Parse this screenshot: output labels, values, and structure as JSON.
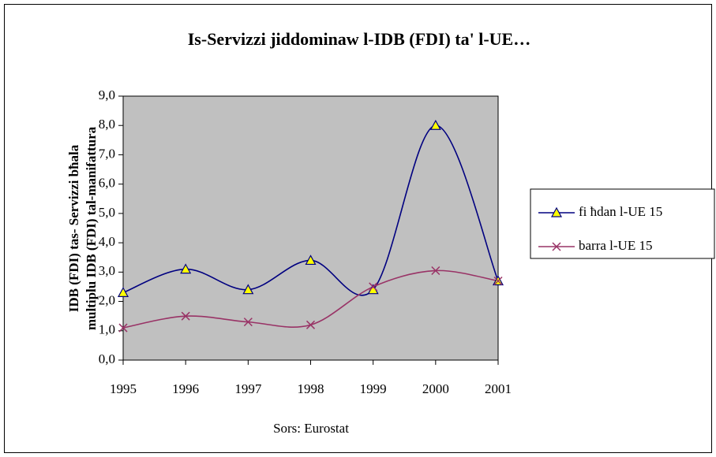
{
  "chart_data": {
    "type": "line",
    "title": "Is-Servizzi jiddominaw l-IDB (FDI) ta' l-UE…",
    "ylabel": [
      "IDB (FDI) tas- Servizzi  bħala",
      "multiplu IDB (FDI) tal-manifattura"
    ],
    "xlabel": "Sors: Eurostat",
    "categories": [
      "1995",
      "1996",
      "1997",
      "1998",
      "1999",
      "2000",
      "2001"
    ],
    "series": [
      {
        "name": "fi ħdan l-UE 15",
        "color": "#000080",
        "marker": "triangle",
        "values": [
          2.3,
          3.1,
          2.4,
          3.4,
          2.4,
          8.0,
          2.7
        ]
      },
      {
        "name": "barra l-UE 15",
        "color": "#993366",
        "marker": "x",
        "values": [
          1.1,
          1.5,
          1.3,
          1.2,
          2.5,
          3.05,
          2.7
        ]
      }
    ],
    "ylim": [
      0,
      9
    ],
    "yticks": [
      {
        "value": 0,
        "label": "0,0"
      },
      {
        "value": 1,
        "label": "1,0"
      },
      {
        "value": 2,
        "label": "2,0"
      },
      {
        "value": 3,
        "label": "3,0"
      },
      {
        "value": 4,
        "label": "4,0"
      },
      {
        "value": 5,
        "label": "5,0"
      },
      {
        "value": 6,
        "label": "6,0"
      },
      {
        "value": 7,
        "label": "7,0"
      },
      {
        "value": 8,
        "label": "8,0"
      },
      {
        "value": 9,
        "label": "9,0"
      }
    ],
    "plot_background": "#c0c0c0",
    "smooth": true,
    "legend": "right"
  }
}
